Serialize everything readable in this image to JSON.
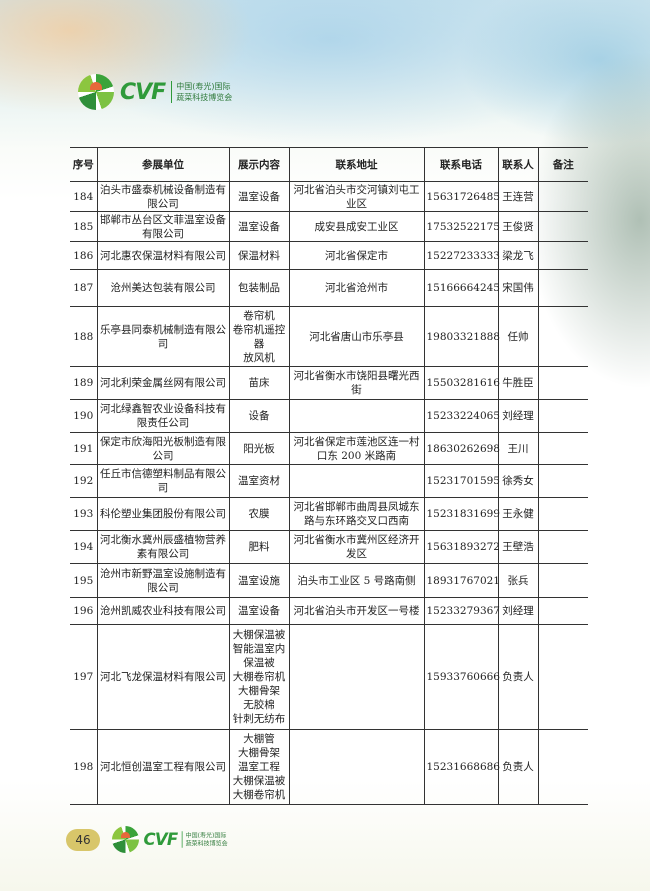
{
  "header": {
    "logo": {
      "brand": "CVF",
      "line1": "中国(寿光)国际",
      "line2": "蔬菜科技博览会"
    }
  },
  "table": {
    "columns": [
      "序号",
      "参展单位",
      "展示内容",
      "联系地址",
      "联系电话",
      "联系人",
      "备注"
    ],
    "rows": [
      {
        "no": "184",
        "company": "泊头市盛泰机械设备制造有限公司",
        "products": "温室设备",
        "address": "河北省泊头市交河镇刘屯工业区",
        "phone": "15631726485",
        "contact": "王连营",
        "note": ""
      },
      {
        "no": "185",
        "company": "邯郸市丛台区文菲温室设备有限公司",
        "products": "温室设备",
        "address": "成安县成安工业区",
        "phone": "17532522175",
        "contact": "王俊贤",
        "note": ""
      },
      {
        "no": "186",
        "company": "河北惠农保温材料有限公司",
        "products": "保温材料",
        "address": "河北省保定市",
        "phone": "15227233333",
        "contact": "梁龙飞",
        "note": ""
      },
      {
        "no": "187",
        "company": "沧州美达包装有限公司",
        "products": "包装制品",
        "address": "河北省沧州市",
        "phone": "15166664245",
        "contact": "宋国伟",
        "note": ""
      },
      {
        "no": "188",
        "company": "乐亭县同泰机械制造有限公司",
        "products": "卷帘机\n卷帘机遥控器\n放风机",
        "address": "河北省唐山市乐亭县",
        "phone": "19803321888",
        "contact": "任帅",
        "note": ""
      },
      {
        "no": "189",
        "company": "河北利荣金属丝网有限公司",
        "products": "苗床",
        "address": "河北省衡水市饶阳县曙光西街",
        "phone": "15503281616",
        "contact": "牛胜臣",
        "note": ""
      },
      {
        "no": "190",
        "company": "河北绿鑫智农业设备科技有限责任公司",
        "products": "设备",
        "address": "",
        "phone": "15233224065",
        "contact": "刘经理",
        "note": ""
      },
      {
        "no": "191",
        "company": "保定市欣海阳光板制造有限公司",
        "products": "阳光板",
        "address": "河北省保定市莲池区连一村口东 200 米路南",
        "phone": "18630262698",
        "contact": "王川",
        "note": ""
      },
      {
        "no": "192",
        "company": "任丘市信德塑料制品有限公司",
        "products": "温室资材",
        "address": "",
        "phone": "15231701595",
        "contact": "徐秀女",
        "note": ""
      },
      {
        "no": "193",
        "company": "科伦塑业集团股份有限公司",
        "products": "农膜",
        "address": "河北省邯郸市曲周县凤城东路与东环路交叉口西南",
        "phone": "15231831699",
        "contact": "王永健",
        "note": ""
      },
      {
        "no": "194",
        "company": "河北衡水冀州辰盛植物营养素有限公司",
        "products": "肥料",
        "address": "河北省衡水市冀州区经济开发区",
        "phone": "15631893272",
        "contact": "王壁浩",
        "note": ""
      },
      {
        "no": "195",
        "company": "沧州市新野温室设施制造有限公司",
        "products": "温室设施",
        "address": "泊头市工业区 5 号路南侧",
        "phone": "18931767021",
        "contact": "张兵",
        "note": ""
      },
      {
        "no": "196",
        "company": "沧州凯威农业科技有限公司",
        "products": "温室设备",
        "address": "河北省泊头市开发区一号楼",
        "phone": "15233279367",
        "contact": "刘经理",
        "note": ""
      },
      {
        "no": "197",
        "company": "河北飞龙保温材料有限公司",
        "products": "大棚保温被\n智能温室内保温被\n大棚卷帘机\n大棚骨架\n无胶棉\n针刺无纺布",
        "address": "",
        "phone": "15933760666",
        "contact": "负责人",
        "note": ""
      },
      {
        "no": "198",
        "company": "河北恒创温室工程有限公司",
        "products": "大棚管\n大棚骨架\n温室工程\n大棚保温被\n大棚卷帘机",
        "address": "",
        "phone": "15231668686",
        "contact": "负责人",
        "note": ""
      }
    ]
  },
  "footer": {
    "page_number": "46",
    "logo": {
      "brand": "CVF",
      "line1": "中国(寿光)国际",
      "line2": "蔬菜科技博览会"
    }
  }
}
